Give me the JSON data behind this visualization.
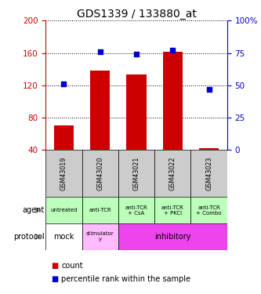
{
  "title": "GDS1339 / 133880_at",
  "samples": [
    "GSM43019",
    "GSM43020",
    "GSM43021",
    "GSM43022",
    "GSM43023"
  ],
  "counts": [
    70,
    138,
    133,
    161,
    42
  ],
  "percentiles": [
    51,
    76,
    74,
    77,
    47
  ],
  "left_ylim": [
    40,
    200
  ],
  "right_ylim": [
    0,
    100
  ],
  "left_yticks": [
    40,
    80,
    120,
    160,
    200
  ],
  "right_yticks": [
    0,
    25,
    50,
    75,
    100
  ],
  "right_yticklabels": [
    "0",
    "25",
    "50",
    "75",
    "100%"
  ],
  "bar_color": "#cc0000",
  "dot_color": "#0000cc",
  "agent_labels": [
    "untreated",
    "anti-TCR",
    "anti-TCR\n+ CsA",
    "anti-TCR\n+ PKCi",
    "anti-TCR\n+ Combo"
  ],
  "agent_color": "#bbffbb",
  "protocol_mock_color": "#ffffff",
  "protocol_stim_color": "#ffbbff",
  "protocol_inhib_color": "#ee44ee",
  "gsm_bg_color": "#cccccc",
  "legend_count_color": "#cc0000",
  "legend_pct_color": "#0000cc",
  "title_fontsize": 10,
  "axis_label_color_left": "#cc0000",
  "axis_label_color_right": "#0000cc",
  "left_arrow_color": "#888888"
}
